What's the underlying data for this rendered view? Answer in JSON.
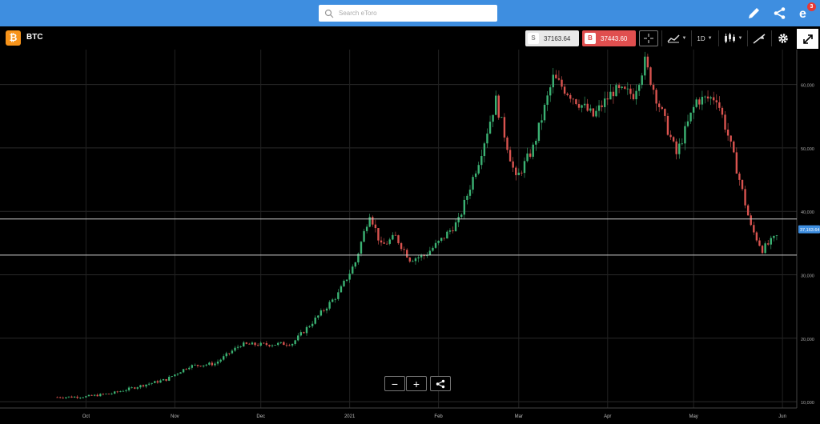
{
  "search": {
    "placeholder": "Search eToro"
  },
  "header": {
    "notification_count": "3"
  },
  "instrument": {
    "symbol": "BTC",
    "coin_glyph": "₿",
    "color": "#f7931a"
  },
  "trade": {
    "sell_tag": "S",
    "sell_price": "37163.64",
    "buy_tag": "B",
    "buy_price": "37443.60"
  },
  "toolbar": {
    "period_label": "1D"
  },
  "colors": {
    "up": "#3bb273",
    "down": "#d9534f",
    "top_bar": "#3e8ee0"
  },
  "zoom": {
    "minus": "−",
    "plus": "+"
  },
  "chart_data": {
    "type": "candlestick",
    "x_ticks": [
      "Oct",
      "Nov",
      "Dec",
      "2021",
      "Feb",
      "Mar",
      "Apr",
      "May",
      "Jun"
    ],
    "y_ticks": [
      "10,000",
      "20,000",
      "30,000",
      "40,000",
      "50,000",
      "60,000"
    ],
    "ylim": [
      9000,
      65500
    ],
    "current_price_label": "37,163.64",
    "current_price": 37164,
    "horizontal_lines": [
      38800,
      33100
    ],
    "grid": true,
    "series": [
      {
        "dates": [
          "2020-09-21",
          "2020-10-01",
          "2020-10-10",
          "2020-10-20",
          "2020-10-29",
          "2020-11-06",
          "2020-11-15",
          "2020-11-24",
          "2020-12-03",
          "2020-12-12",
          "2020-12-21",
          "2020-12-28",
          "2021-01-03",
          "2021-01-08",
          "2021-01-12",
          "2021-01-17",
          "2021-01-22",
          "2021-01-27",
          "2021-02-02",
          "2021-02-08",
          "2021-02-15",
          "2021-02-21",
          "2021-02-28",
          "2021-03-06",
          "2021-03-13",
          "2021-03-20",
          "2021-03-27",
          "2021-04-03",
          "2021-04-10",
          "2021-04-14",
          "2021-04-18",
          "2021-04-25",
          "2021-05-02",
          "2021-05-09",
          "2021-05-13",
          "2021-05-17",
          "2021-05-21",
          "2021-05-25",
          "2021-05-30"
        ],
        "close": [
          10700,
          10800,
          11300,
          12500,
          13500,
          15600,
          16000,
          19000,
          19000,
          19200,
          23500,
          27000,
          32000,
          39800,
          34500,
          36000,
          32500,
          33000,
          35500,
          38500,
          48000,
          57500,
          45000,
          50000,
          61000,
          58000,
          55000,
          59000,
          58500,
          63500,
          58000,
          49000,
          57500,
          58000,
          52000,
          45000,
          37500,
          34000,
          36000
        ]
      }
    ]
  }
}
